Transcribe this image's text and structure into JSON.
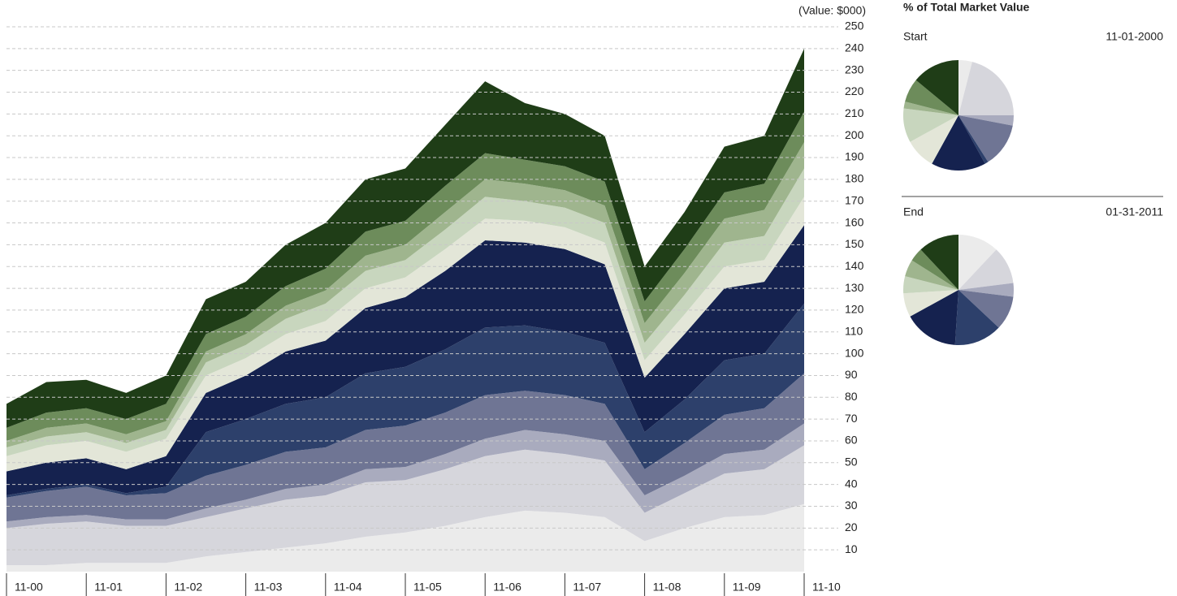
{
  "side_title": "% of Total Market Value",
  "chart_data": [
    {
      "type": "stacked-area",
      "y_label": "(Value: $000)",
      "categories": [
        "11-00",
        null,
        "11-01",
        null,
        "11-02",
        null,
        "11-03",
        null,
        "11-04",
        null,
        "11-05",
        null,
        "11-06",
        null,
        "11-07",
        null,
        "11-08",
        null,
        "11-09",
        null,
        "11-10"
      ],
      "ylim": [
        0,
        250
      ],
      "yticks": [
        10,
        20,
        30,
        40,
        50,
        60,
        70,
        80,
        90,
        100,
        110,
        120,
        130,
        140,
        150,
        160,
        170,
        180,
        190,
        200,
        210,
        220,
        230,
        240,
        250
      ],
      "grid": true,
      "series": [
        {
          "color": "#ebebeb",
          "values": [
            3,
            3,
            4,
            4,
            4,
            7,
            9,
            11,
            13,
            16,
            18,
            21,
            25,
            28,
            27,
            25,
            14,
            20,
            25,
            26,
            31
          ]
        },
        {
          "color": "#d6d6dc",
          "values": [
            17,
            19,
            19,
            17,
            17,
            18,
            20,
            22,
            22,
            25,
            24,
            26,
            28,
            28,
            27,
            26,
            13,
            16,
            20,
            21,
            27
          ]
        },
        {
          "color": "#a9abbe",
          "values": [
            3,
            3,
            3,
            3,
            3,
            4,
            4,
            5,
            5,
            6,
            6,
            7,
            8,
            9,
            9,
            9,
            8,
            8,
            9,
            9,
            10
          ]
        },
        {
          "color": "#6f7594",
          "values": [
            11,
            12,
            13,
            11,
            12,
            15,
            16,
            17,
            17,
            18,
            19,
            19,
            20,
            18,
            18,
            17,
            12,
            15,
            18,
            19,
            23
          ]
        },
        {
          "color": "#2d406b",
          "values": [
            1,
            1,
            1,
            1,
            3,
            20,
            21,
            22,
            23,
            26,
            27,
            29,
            31,
            30,
            29,
            28,
            17,
            20,
            25,
            25,
            32
          ]
        },
        {
          "color": "#15224f",
          "values": [
            11,
            12,
            12,
            11,
            14,
            18,
            20,
            24,
            26,
            30,
            32,
            36,
            40,
            38,
            38,
            36,
            25,
            30,
            33,
            33,
            36
          ]
        },
        {
          "color": "#e3e6d8",
          "values": [
            7,
            8,
            8,
            8,
            8,
            8,
            8,
            8,
            9,
            9,
            9,
            10,
            10,
            10,
            10,
            10,
            8,
            9,
            10,
            10,
            13
          ]
        },
        {
          "color": "#c8d6be",
          "values": [
            4,
            4,
            4,
            4,
            4,
            6,
            6,
            7,
            8,
            8,
            8,
            9,
            10,
            9,
            9,
            9,
            8,
            9,
            11,
            11,
            13
          ]
        },
        {
          "color": "#9fb58e",
          "values": [
            3,
            4,
            4,
            4,
            4,
            5,
            5,
            6,
            6,
            7,
            7,
            8,
            8,
            8,
            8,
            8,
            9,
            10,
            11,
            12,
            12
          ]
        },
        {
          "color": "#6d8c5b",
          "values": [
            6,
            7,
            7,
            7,
            8,
            8,
            8,
            9,
            10,
            11,
            11,
            12,
            12,
            11,
            11,
            11,
            10,
            11,
            12,
            12,
            14
          ]
        },
        {
          "color": "#1f3d17",
          "values": [
            11,
            14,
            13,
            12,
            13,
            16,
            16,
            19,
            21,
            24,
            24,
            28,
            33,
            26,
            24,
            21,
            16,
            17,
            21,
            22,
            29
          ]
        }
      ]
    },
    {
      "type": "pie",
      "title": "Start",
      "date": "11-01-2000",
      "values": [
        4,
        21,
        3,
        13,
        1,
        16,
        9,
        10,
        2,
        7,
        14
      ],
      "colors": [
        "#ebebeb",
        "#d6d6dc",
        "#a9abbe",
        "#6f7594",
        "#2d406b",
        "#15224f",
        "#e3e6d8",
        "#c8d6be",
        "#9fb58e",
        "#6d8c5b",
        "#1f3d17"
      ]
    },
    {
      "type": "pie",
      "title": "End",
      "date": "01-31-2011",
      "values": [
        12,
        11,
        4,
        10,
        14,
        16,
        7,
        5,
        5,
        4,
        12
      ],
      "colors": [
        "#ebebeb",
        "#d6d6dc",
        "#a9abbe",
        "#6f7594",
        "#2d406b",
        "#15224f",
        "#e3e6d8",
        "#c8d6be",
        "#9fb58e",
        "#6d8c5b",
        "#1f3d17"
      ]
    }
  ]
}
